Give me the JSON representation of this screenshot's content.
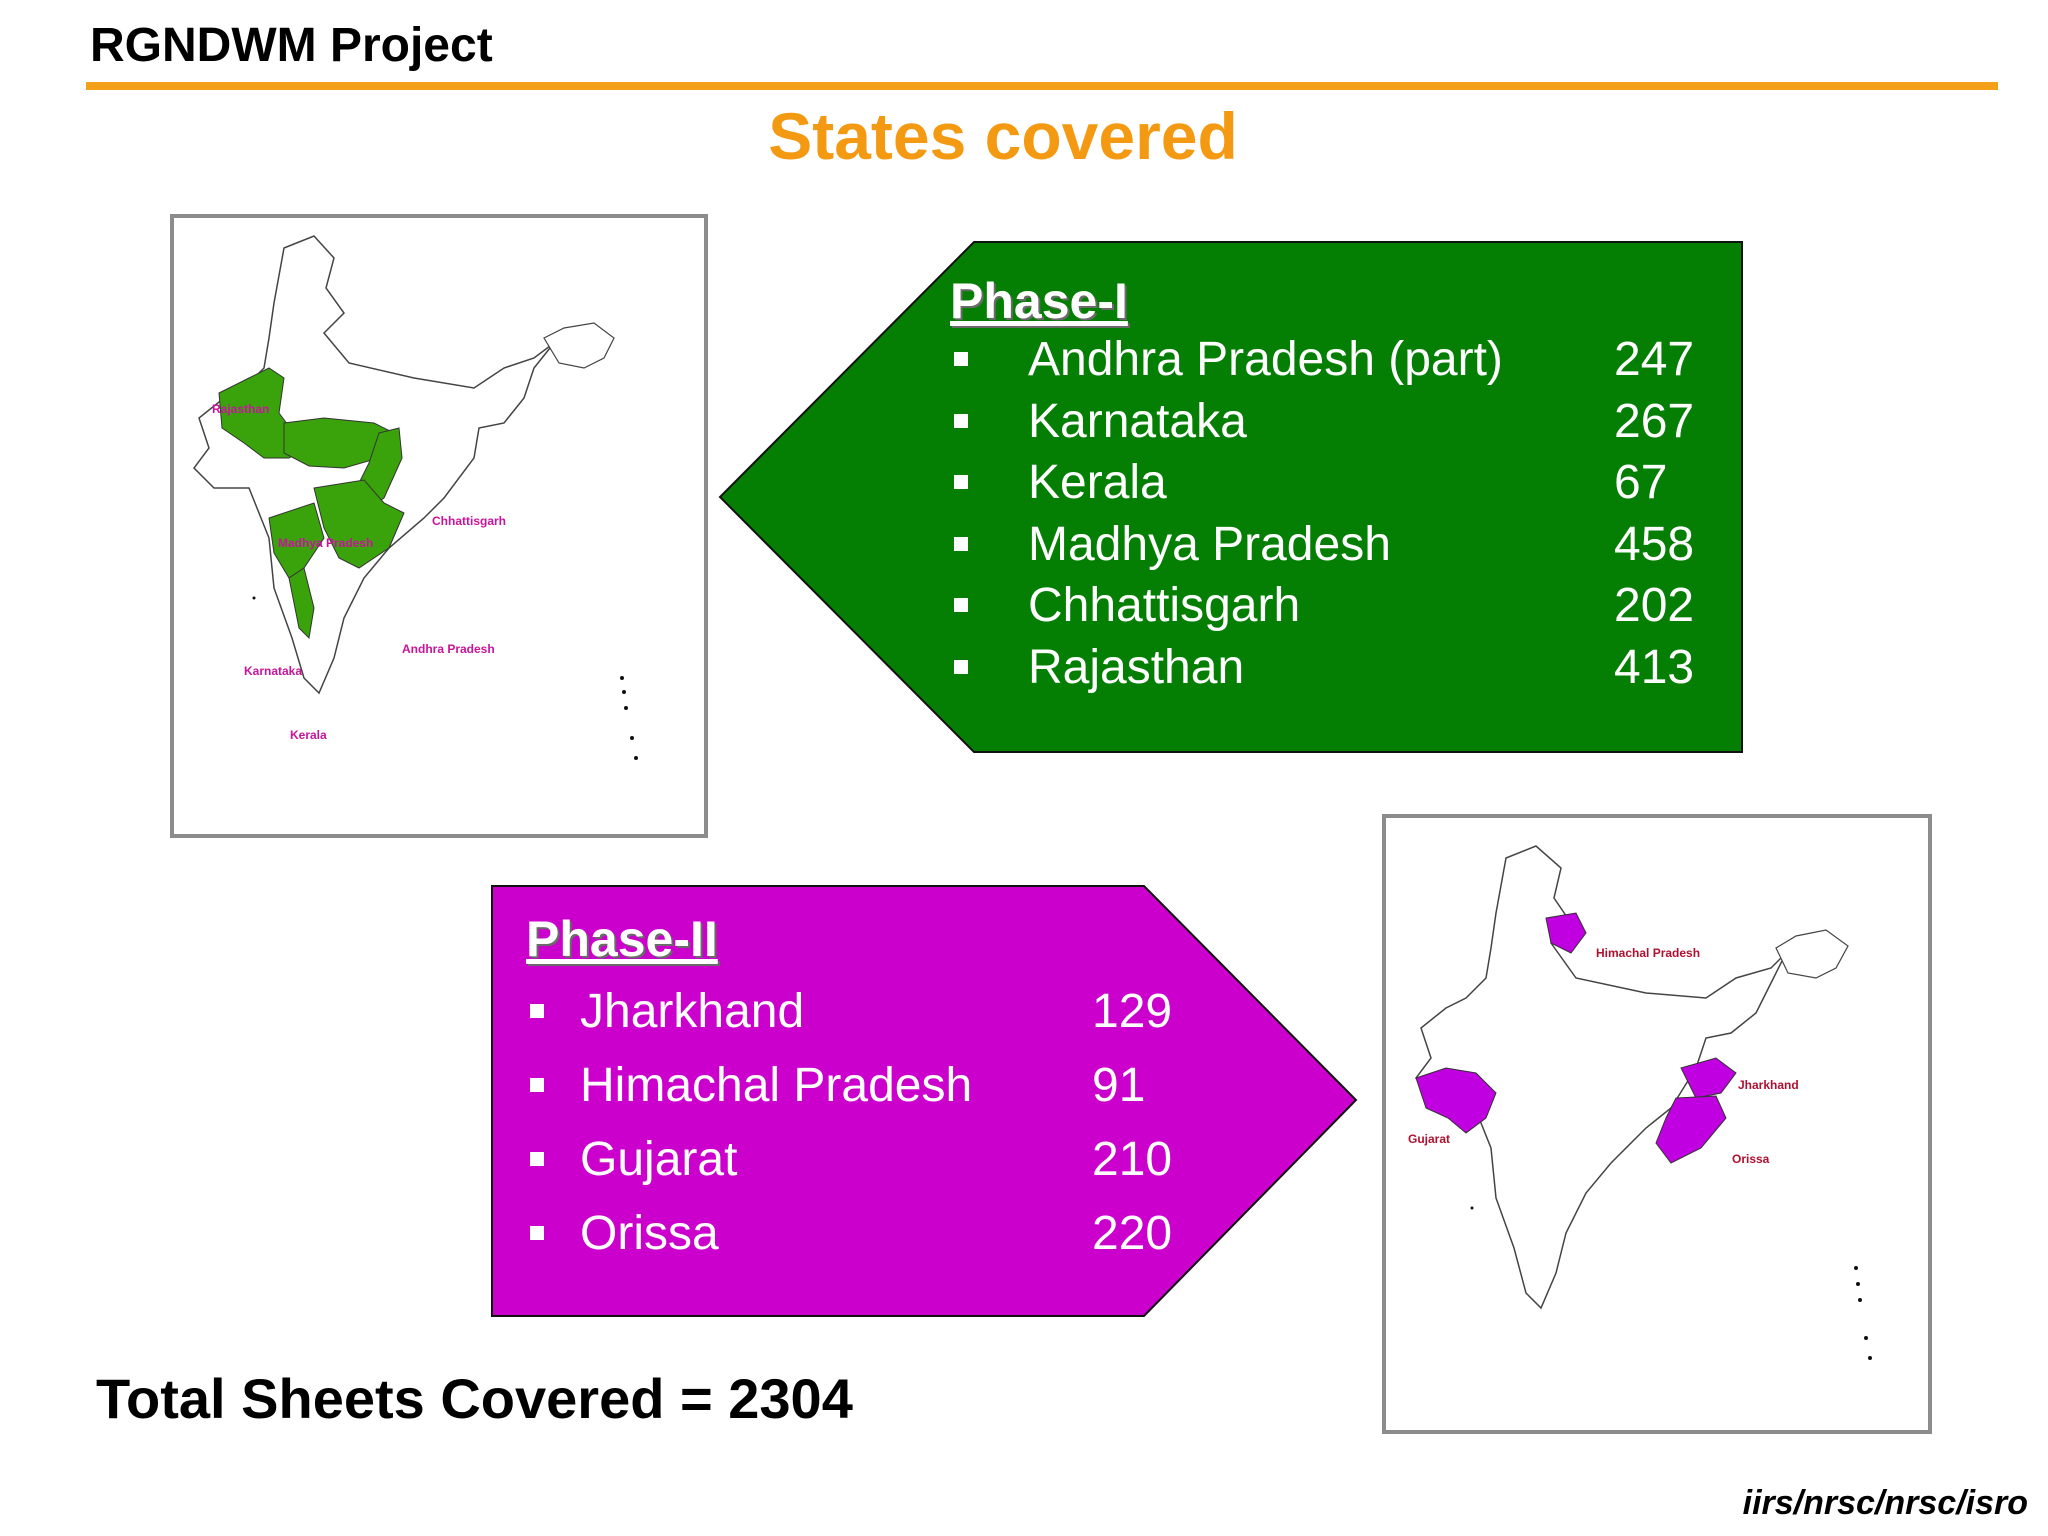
{
  "header": {
    "project_title": "RGNDWM Project"
  },
  "slide": {
    "title": "States covered"
  },
  "phase1": {
    "heading": "Phase-I",
    "color": "#047f04",
    "items": [
      {
        "state": "Andhra Pradesh (part)",
        "sheets": "247"
      },
      {
        "state": "Karnataka",
        "sheets": "267"
      },
      {
        "state": "Kerala",
        "sheets": "67"
      },
      {
        "state": "Madhya Pradesh",
        "sheets": "458"
      },
      {
        "state": "Chhattisgarh",
        "sheets": "202"
      },
      {
        "state": "Rajasthan",
        "sheets": "413"
      }
    ]
  },
  "phase2": {
    "heading": "Phase-II",
    "color": "#cc00cc",
    "items": [
      {
        "state": "Jharkhand",
        "sheets": "129"
      },
      {
        "state": "Himachal Pradesh",
        "sheets": "91"
      },
      {
        "state": "Gujarat",
        "sheets": "210"
      },
      {
        "state": "Orissa",
        "sheets": "220"
      }
    ]
  },
  "map1": {
    "highlight_color": "#3aa30c",
    "label_color": "#c8149b",
    "labels": {
      "rajasthan": "Rajasthan",
      "madhya_pradesh": "Madhya Pradesh",
      "chhattisgarh": "Chhattisgarh",
      "andhra_pradesh": "Andhra Pradesh",
      "karnataka": "Karnataka",
      "kerala": "Kerala"
    }
  },
  "map2": {
    "highlight_color": "#c000e0",
    "label_color": "#b01030",
    "labels": {
      "himachal_pradesh": "Himachal Pradesh",
      "jharkhand": "Jharkhand",
      "gujarat": "Gujarat",
      "orissa": "Orissa"
    }
  },
  "summary": {
    "total_text": "Total Sheets Covered = 2304"
  },
  "footer": {
    "credit": "iirs/nrsc/nrsc/isro"
  }
}
